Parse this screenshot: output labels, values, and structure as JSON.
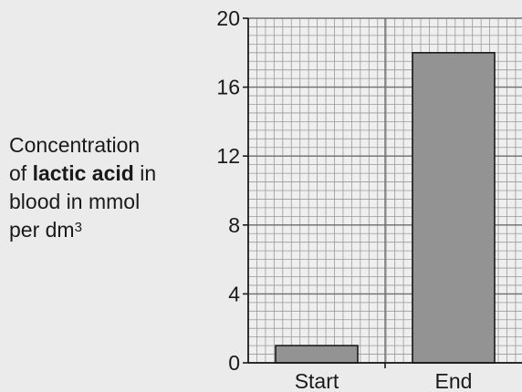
{
  "chart_data": {
    "type": "bar",
    "categories": [
      "Start",
      "End"
    ],
    "values": [
      1,
      18
    ],
    "ylim": [
      0,
      20
    ],
    "yticks": [
      0,
      4,
      8,
      12,
      16,
      20
    ],
    "grid": true,
    "ylabel": {
      "part1": "Concentration",
      "part2": "of ",
      "bold": "lactic acid",
      "part3": " in",
      "part4": "blood in mmol",
      "part5": "per dm",
      "superscript": "3"
    },
    "colors": {
      "bar_fill": "#939393",
      "bar_stroke": "#1a1a1a",
      "grid_minor": "#9a9a9a",
      "grid_major": "#6e6e6e",
      "axis": "#1a1a1a"
    }
  }
}
